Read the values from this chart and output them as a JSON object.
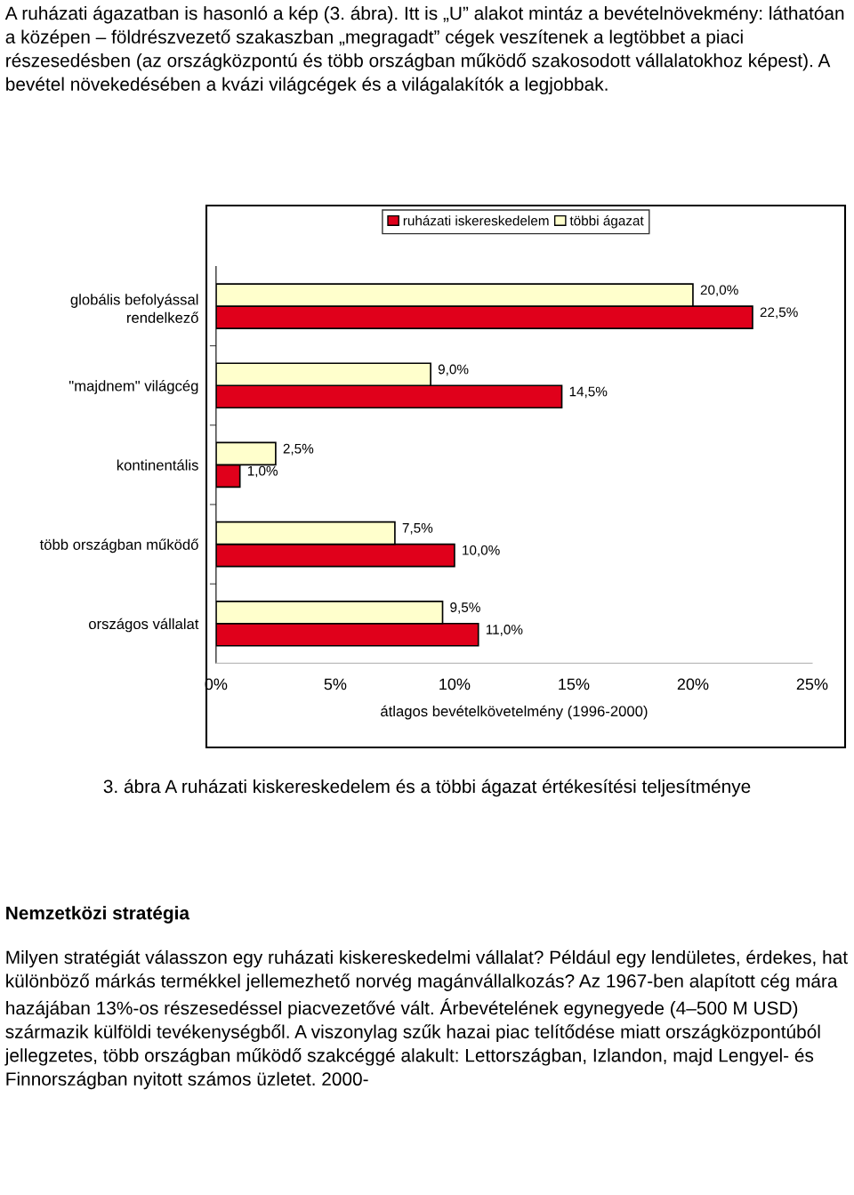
{
  "chart_data": {
    "type": "bar",
    "orientation": "horizontal",
    "categories": [
      "globális befolyással\nrendelkező",
      "\"majdnem\" világcég",
      "kontinentális",
      "több országban működő",
      "országos vállalat"
    ],
    "series": [
      {
        "name": "ruházati iskereskedelem",
        "color": "#e0001b",
        "values": [
          22.5,
          14.5,
          1.0,
          10.0,
          11.0
        ],
        "value_labels": [
          "22,5%",
          "14,5%",
          "1,0%",
          "10,0%",
          "11,0%"
        ]
      },
      {
        "name": "többi ágazat",
        "color": "#ffffcc",
        "values": [
          20.0,
          9.0,
          2.5,
          7.5,
          9.5
        ],
        "value_labels": [
          "20,0%",
          "9,0%",
          "2,5%",
          "7,5%",
          "9,5%"
        ]
      }
    ],
    "xlim": [
      0,
      25
    ],
    "xticks": [
      {
        "value": 0,
        "label": "0%"
      },
      {
        "value": 5,
        "label": "5%"
      },
      {
        "value": 10,
        "label": "10%"
      },
      {
        "value": 15,
        "label": "15%"
      },
      {
        "value": 20,
        "label": "20%"
      },
      {
        "value": 25,
        "label": "25%"
      }
    ],
    "xlabel": "átlagos bevételkövetelmény (1996-2000)",
    "legend": "top",
    "grid": false,
    "annotations": [
      "A ruházati ágazatban is hasonló a kép (3. ábra). Itt is „U” alakot mintáz a bevételnövekmény: láthatóan a középen – földrészvezető szakaszban „megragadt” cégek veszítenek a legtöbbet a piaci részesedésben (az országközpontú és több országban működő szakosodott vállalatokhoz képest). A bevétel növekedésében a kvázi világcégek és a világalakítók a legjobbak.",
      "3. ábra A ruházati kiskereskedelem és a többi ágazat értékesítési teljesítménye",
      "Nemzetközi stratégia",
      "Milyen stratégiát válasszon egy ruházati kiskereskedelmi vállalat? Például egy lendületes, érdekes, hat különböző márkás termékkel jellemezhető norvég magánvállalkozás? Az 1967-ben alapított cég mára hazájában 13%-os részesedéssel piacvezetővé vált. Árbevételének egynegyede (4–500 M USD) származik külföldi tevékenységből. A viszonylag szűk hazai piac telítődése miatt országközpontúból jellegzetes, több országban működő szakcéggé alakult: Lettországban, Izlandon, majd Lengyel- és Finnországban nyitott számos üzletet. 2000-"
    ]
  }
}
